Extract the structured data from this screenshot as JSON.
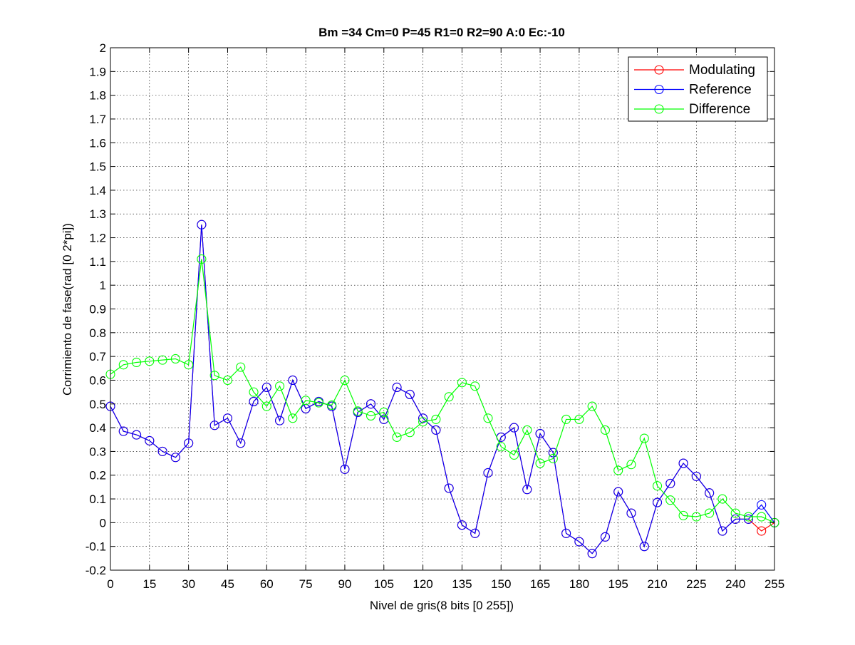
{
  "chart_data": {
    "type": "line",
    "title": "Bm =34  Cm=0  P=45  R1=0  R2=90  A:0  Ec:-10",
    "xlabel": "Nivel de gris(8 bits [0 255])",
    "ylabel": "Corrimiento de fase(rad [0 2*pi])",
    "xlim": [
      0,
      255
    ],
    "ylim": [
      -0.2,
      2
    ],
    "xticks": [
      0,
      15,
      30,
      45,
      60,
      75,
      90,
      105,
      120,
      135,
      150,
      165,
      180,
      195,
      210,
      225,
      240,
      255
    ],
    "xtick_labels": [
      "0",
      "15",
      "30",
      "45",
      "60",
      "75",
      "90",
      "105",
      "120",
      "135",
      "150",
      "165",
      "180",
      "195",
      "210",
      "225",
      "240",
      "255"
    ],
    "yticks": [
      -0.2,
      -0.1,
      0,
      0.1,
      0.2,
      0.3,
      0.4,
      0.5,
      0.6,
      0.7,
      0.8,
      0.9,
      1,
      1.1,
      1.2,
      1.3,
      1.4,
      1.5,
      1.6,
      1.7,
      1.8,
      1.9,
      2
    ],
    "ytick_labels": [
      "-0.2",
      "-0.1",
      "0",
      "0.1",
      "0.2",
      "0.3",
      "0.4",
      "0.5",
      "0.6",
      "0.7",
      "0.8",
      "0.9",
      "1",
      "1.1",
      "1.2",
      "1.3",
      "1.4",
      "1.5",
      "1.6",
      "1.7",
      "1.8",
      "1.9",
      "2"
    ],
    "grid": true,
    "legend_position": "top-right",
    "x": [
      0,
      5,
      10,
      15,
      20,
      25,
      30,
      35,
      40,
      45,
      50,
      55,
      60,
      65,
      70,
      75,
      80,
      85,
      90,
      95,
      100,
      105,
      110,
      115,
      120,
      125,
      130,
      135,
      140,
      145,
      150,
      155,
      160,
      165,
      170,
      175,
      180,
      185,
      190,
      195,
      200,
      205,
      210,
      215,
      220,
      225,
      230,
      235,
      240,
      245,
      250,
      255
    ],
    "series": [
      {
        "name": "Modulating",
        "color": "#ff0000",
        "values": [
          0.49,
          0.385,
          0.37,
          0.345,
          0.3,
          0.275,
          0.335,
          1.255,
          0.41,
          0.44,
          0.335,
          0.51,
          0.57,
          0.43,
          0.6,
          0.48,
          0.51,
          0.49,
          0.225,
          0.465,
          0.5,
          0.435,
          0.57,
          0.54,
          0.44,
          0.39,
          0.145,
          -0.01,
          -0.045,
          0.21,
          0.36,
          0.4,
          0.14,
          0.375,
          0.295,
          -0.045,
          -0.08,
          -0.13,
          -0.06,
          0.13,
          0.04,
          -0.1,
          0.085,
          0.165,
          0.25,
          0.195,
          0.125,
          -0.035,
          0.015,
          0.015,
          -0.035,
          0.0
        ]
      },
      {
        "name": "Reference",
        "color": "#0000ff",
        "values": [
          0.49,
          0.385,
          0.37,
          0.345,
          0.3,
          0.275,
          0.335,
          1.255,
          0.41,
          0.44,
          0.335,
          0.51,
          0.57,
          0.43,
          0.6,
          0.48,
          0.51,
          0.49,
          0.225,
          0.465,
          0.5,
          0.435,
          0.57,
          0.54,
          0.44,
          0.39,
          0.145,
          -0.01,
          -0.045,
          0.21,
          0.36,
          0.4,
          0.14,
          0.375,
          0.295,
          -0.045,
          -0.08,
          -0.13,
          -0.06,
          0.13,
          0.04,
          -0.1,
          0.085,
          0.165,
          0.25,
          0.195,
          0.125,
          -0.035,
          0.015,
          0.015,
          0.075,
          0.0
        ]
      },
      {
        "name": "Difference",
        "color": "#00ff00",
        "values": [
          0.625,
          0.665,
          0.675,
          0.68,
          0.685,
          0.69,
          0.665,
          1.11,
          0.62,
          0.6,
          0.655,
          0.55,
          0.49,
          0.575,
          0.44,
          0.515,
          0.505,
          0.495,
          0.6,
          0.47,
          0.45,
          0.465,
          0.36,
          0.38,
          0.425,
          0.435,
          0.53,
          0.59,
          0.575,
          0.44,
          0.32,
          0.285,
          0.39,
          0.25,
          0.27,
          0.435,
          0.435,
          0.49,
          0.39,
          0.22,
          0.245,
          0.355,
          0.155,
          0.095,
          0.03,
          0.025,
          0.04,
          0.1,
          0.04,
          0.025,
          0.025,
          0.0
        ]
      }
    ]
  }
}
